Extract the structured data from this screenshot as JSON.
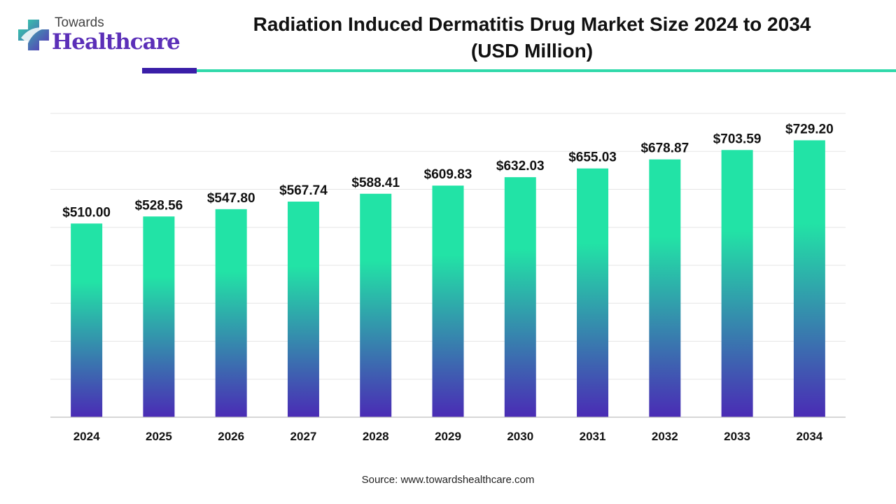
{
  "brand": {
    "top": "Towards",
    "bottom": "Healthcare",
    "colors": {
      "purple": "#5b2fb8",
      "teal": "#2fd9aa",
      "dark_rule": "#3a1ea8"
    }
  },
  "source": "Source: www.towardshealthcare.com",
  "chart_data": {
    "type": "bar",
    "title": "Radiation Induced Dermatitis Drug Market Size 2024 to 2034",
    "subtitle": "(USD Million)",
    "categories": [
      "2024",
      "2025",
      "2026",
      "2027",
      "2028",
      "2029",
      "2030",
      "2031",
      "2032",
      "2033",
      "2034"
    ],
    "values": [
      510.0,
      528.56,
      547.8,
      567.74,
      588.41,
      609.83,
      632.03,
      655.03,
      678.87,
      703.59,
      729.2
    ],
    "value_labels": [
      "$510.00",
      "$528.56",
      "$547.80",
      "$567.74",
      "$588.41",
      "$609.83",
      "$632.03",
      "$655.03",
      "$678.87",
      "$703.59",
      "$729.20"
    ],
    "ylim": [
      0,
      800
    ],
    "grid": true,
    "legend": "none",
    "colors": {
      "bar_top": "#22e3a6",
      "bar_bottom": "#4a2bb5"
    }
  }
}
